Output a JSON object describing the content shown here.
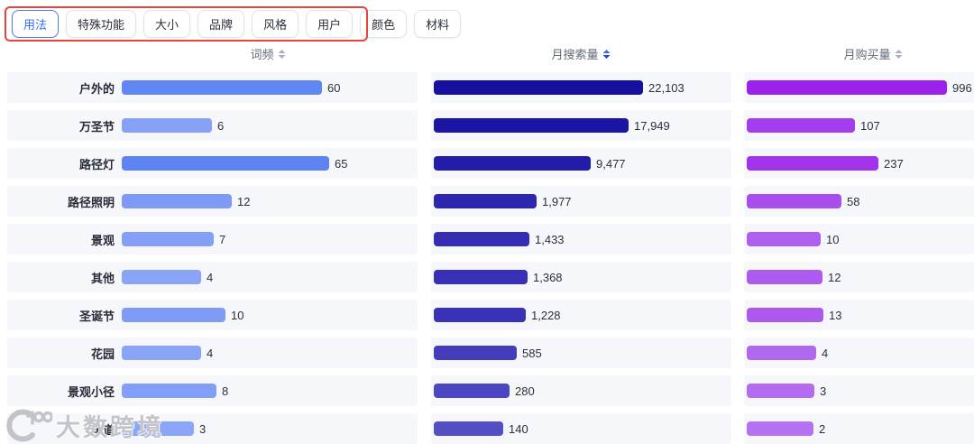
{
  "tabs": {
    "items": [
      {
        "label": "用法",
        "selected": true
      },
      {
        "label": "特殊功能",
        "selected": false
      },
      {
        "label": "大小",
        "selected": false
      },
      {
        "label": "品牌",
        "selected": false
      },
      {
        "label": "风格",
        "selected": false
      },
      {
        "label": "用户",
        "selected": false
      },
      {
        "label": "颜色",
        "selected": false
      },
      {
        "label": "材料",
        "selected": false
      }
    ],
    "selected_color": "#3668f0"
  },
  "annotation": {
    "shape": "red-highlight-box",
    "color": "#e8433c"
  },
  "columns": [
    {
      "key": "freq",
      "label": "词频",
      "sort_active": false
    },
    {
      "key": "search",
      "label": "月搜索量",
      "sort_active": true
    },
    {
      "key": "purchase",
      "label": "月购买量",
      "sort_active": false
    }
  ],
  "chart_data": {
    "type": "bar",
    "orientation": "horizontal",
    "categories": [
      "户外的",
      "万圣节",
      "路径灯",
      "路径照明",
      "景观",
      "其他",
      "圣诞节",
      "花园",
      "景观小径",
      "车道"
    ],
    "series": [
      {
        "name": "词频",
        "values": [
          60,
          6,
          65,
          12,
          7,
          4,
          10,
          4,
          8,
          3
        ]
      },
      {
        "name": "月搜索量",
        "values": [
          22103,
          17949,
          9477,
          1977,
          1433,
          1368,
          1228,
          585,
          280,
          140
        ]
      },
      {
        "name": "月购买量",
        "values": [
          996,
          107,
          237,
          58,
          10,
          12,
          13,
          4,
          3,
          2
        ]
      }
    ],
    "sorted_by": "月搜索量 descending",
    "legend": "none",
    "grid": "off",
    "note": "last category label partially hidden behind watermark"
  },
  "render": {
    "band_bg": "#f6f7fb",
    "bar_widths": {
      "freq": [
        222,
        100,
        230,
        122,
        102,
        88,
        115,
        88,
        105,
        80
      ],
      "search": [
        232,
        216,
        174,
        114,
        106,
        104,
        102,
        92,
        84,
        77
      ],
      "purchase": [
        222,
        120,
        146,
        105,
        82,
        84,
        85,
        77,
        75,
        74
      ]
    },
    "bar_colors": {
      "freq": [
        "#5f86f3",
        "#86a1f6",
        "#5d84f2",
        "#7d9af5",
        "#84a0f6",
        "#89a3f6",
        "#7f9cf5",
        "#89a3f6",
        "#829ef6",
        "#8ba5f7"
      ],
      "search": [
        "#16109f",
        "#1b15a4",
        "#231ca9",
        "#2d26af",
        "#342db3",
        "#372fb5",
        "#3931b6",
        "#433dbc",
        "#4c46c2",
        "#534dc6"
      ],
      "purchase": [
        "#9c21ea",
        "#a43eec",
        "#a233eb",
        "#a94ded",
        "#ae5fef",
        "#ad5bee",
        "#ad59ee",
        "#b168f0",
        "#b36cf0",
        "#b471f1"
      ]
    }
  },
  "watermark": {
    "text": "大数跨境",
    "logo": "k100-circle-logo",
    "color": "#c3c4ca"
  }
}
